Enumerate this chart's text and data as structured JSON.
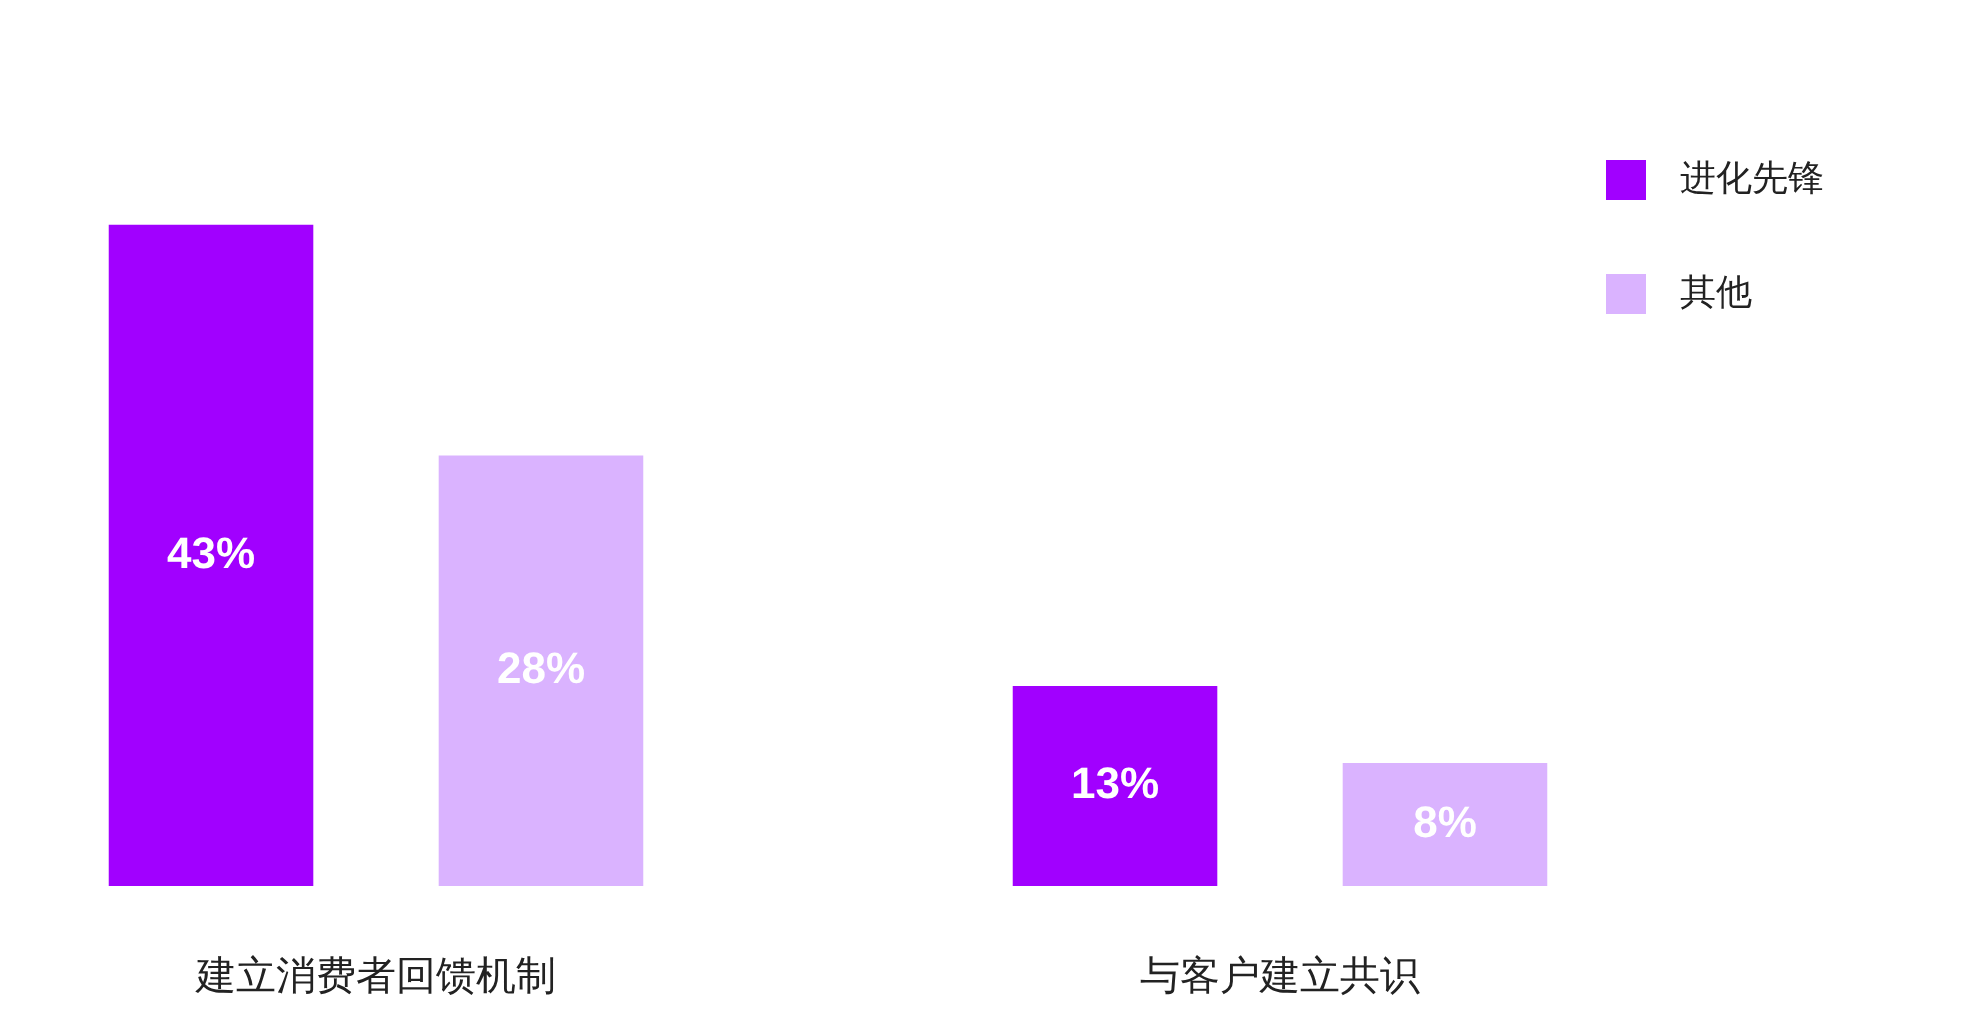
{
  "chart_data": {
    "type": "bar",
    "categories": [
      "建立消费者回馈机制",
      "与客户建立共识"
    ],
    "series": [
      {
        "name": "进化先锋",
        "color": "#a100ff",
        "values": [
          43,
          13
        ],
        "value_labels": [
          "43%",
          "13%"
        ]
      },
      {
        "name": "其他",
        "color": "#dab3ff",
        "values": [
          28,
          8
        ],
        "value_labels": [
          "28%",
          "8%"
        ]
      }
    ],
    "legend": "top right",
    "grid": false
  }
}
